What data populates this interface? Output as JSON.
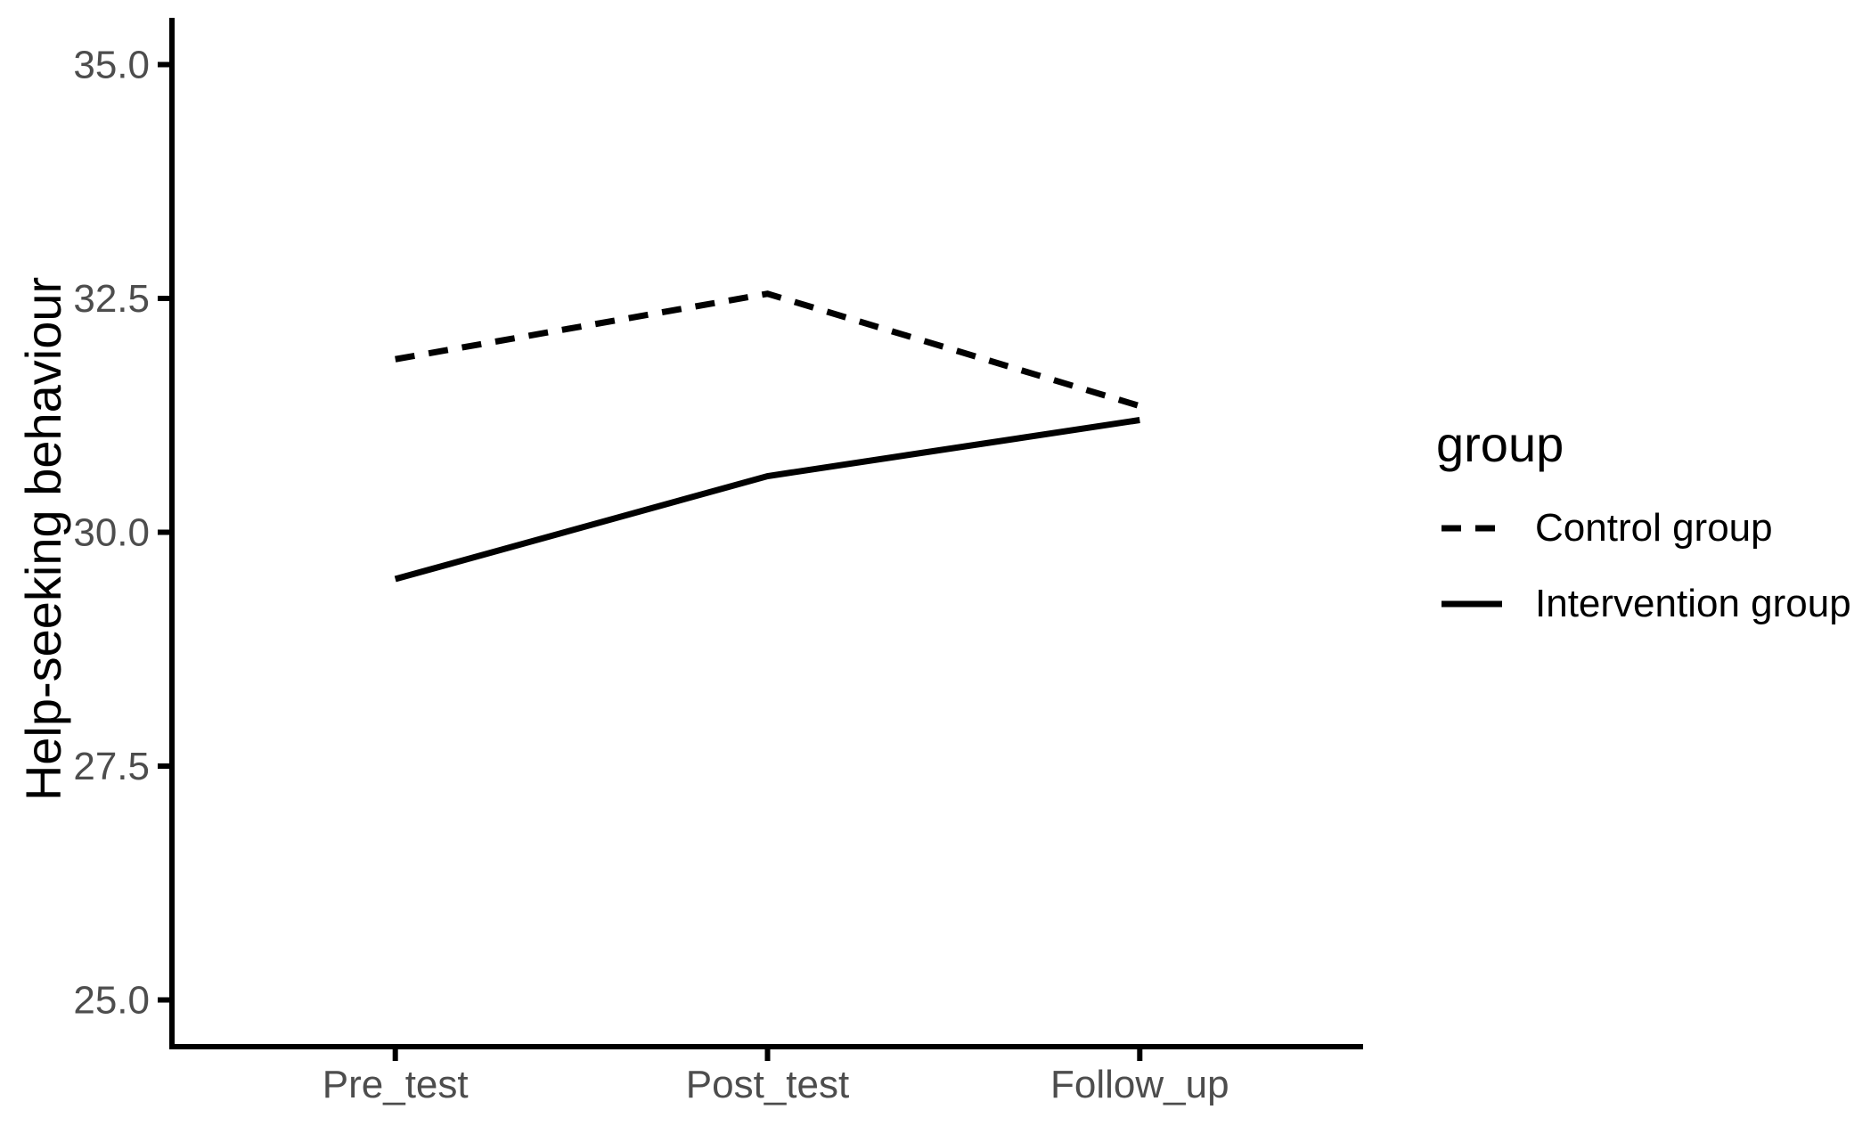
{
  "chart_data": {
    "type": "line",
    "title": "",
    "xlabel": "",
    "ylabel": "Help-seeking behaviour",
    "categories": [
      "Pre_test",
      "Post_test",
      "Follow_up"
    ],
    "series": [
      {
        "name": "Control group",
        "style": "dashed",
        "color": "#000000",
        "values": [
          31.85,
          32.55,
          31.35
        ]
      },
      {
        "name": "Intervention group",
        "style": "solid",
        "color": "#000000",
        "values": [
          29.5,
          30.6,
          31.2
        ]
      }
    ],
    "yticks": [
      "25.0",
      "27.5",
      "30.0",
      "32.5",
      "35.0"
    ],
    "ylim": [
      24.5,
      35.5
    ],
    "grid": false,
    "legend": {
      "title": "group",
      "position": "right"
    },
    "colors": {
      "background": "#ffffff",
      "axis": "#000000",
      "tick_label": "#4d4d4d",
      "axis_title": "#000000",
      "legend_text": "#000000"
    }
  }
}
